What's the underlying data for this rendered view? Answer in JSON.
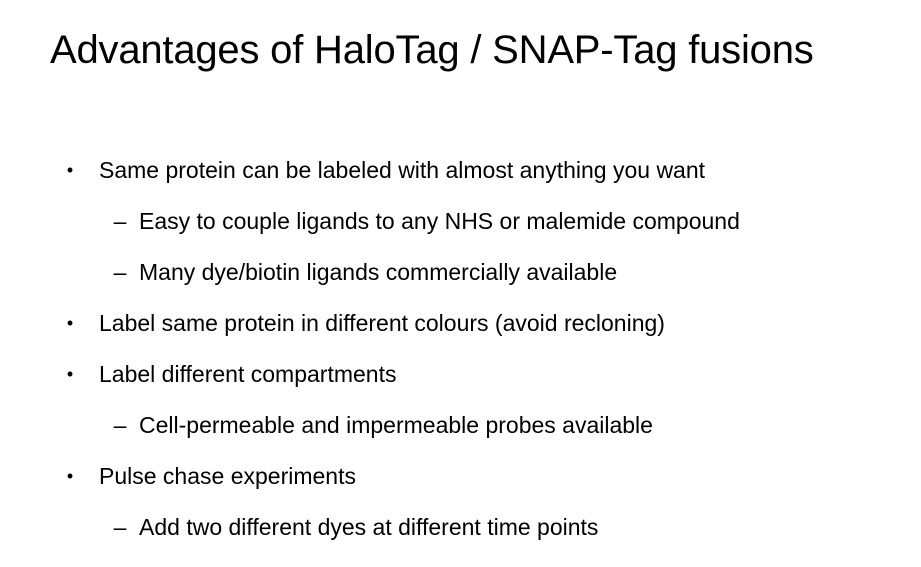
{
  "slide": {
    "title": "Advantages of HaloTag / SNAP-Tag fusions",
    "bullets": [
      {
        "level": 1,
        "marker": "•",
        "text": "Same protein can be labeled with almost anything you want"
      },
      {
        "level": 2,
        "marker": "–",
        "text": "Easy to couple ligands to any NHS or malemide compound"
      },
      {
        "level": 2,
        "marker": "–",
        "text": "Many dye/biotin ligands commercially available"
      },
      {
        "level": 1,
        "marker": "•",
        "text": "Label same protein in different colours (avoid recloning)"
      },
      {
        "level": 1,
        "marker": "•",
        "text": "Label different compartments"
      },
      {
        "level": 2,
        "marker": "–",
        "text": "Cell-permeable and impermeable probes available"
      },
      {
        "level": 1,
        "marker": "•",
        "text": "Pulse chase experiments"
      },
      {
        "level": 2,
        "marker": "–",
        "text": "Add two different dyes at different time points"
      }
    ]
  }
}
